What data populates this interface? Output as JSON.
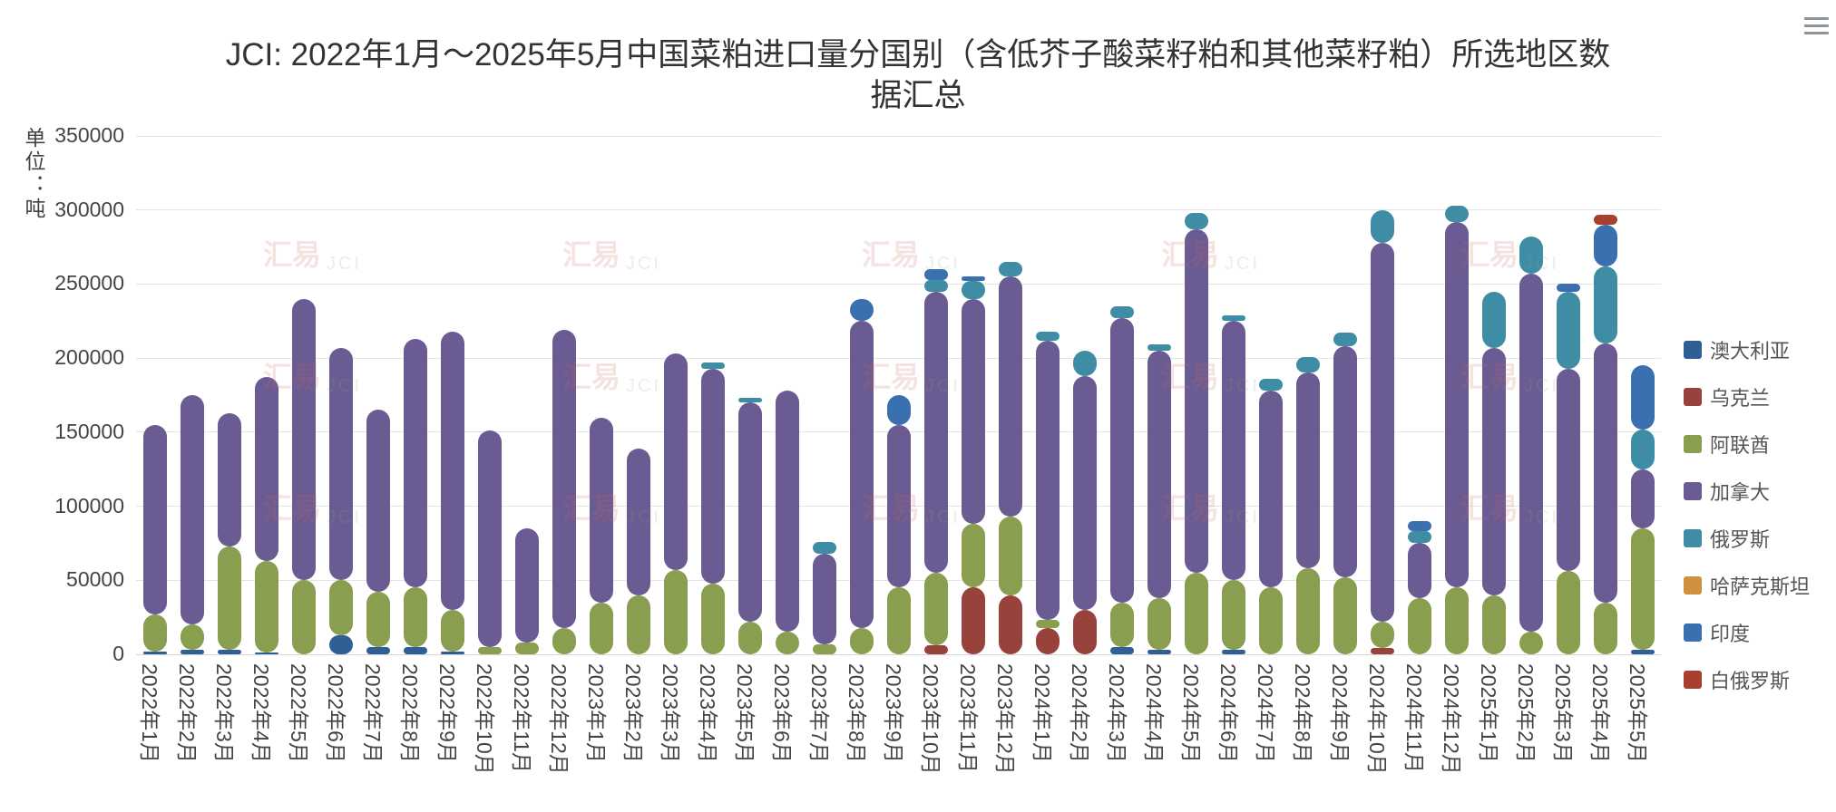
{
  "page": {
    "title": "JCI: 2022年1月～2025年5月中国菜粕进口量分国别（含低芥子酸菜籽粕和其他菜籽粕）所选地区数据汇总",
    "menu_icon": "hamburger-icon",
    "watermark": {
      "brand": "汇易",
      "abbr": "JCI"
    }
  },
  "chart_data": {
    "type": "bar",
    "stacked": true,
    "title": "JCI: 2022年1月～2025年5月中国菜粕进口量分国别（含低芥子酸菜籽粕和其他菜籽粕）所选地区数据汇总",
    "xlabel": "",
    "ylabel": "单位：吨",
    "ylim": [
      0,
      350000
    ],
    "yticks": [
      0,
      50000,
      100000,
      150000,
      200000,
      250000,
      300000,
      350000
    ],
    "grid": true,
    "legend_position": "right",
    "categories": [
      "2022年1月",
      "2022年2月",
      "2022年3月",
      "2022年4月",
      "2022年5月",
      "2022年6月",
      "2022年7月",
      "2022年8月",
      "2022年9月",
      "2022年10月",
      "2022年11月",
      "2022年12月",
      "2023年1月",
      "2023年2月",
      "2023年3月",
      "2023年4月",
      "2023年5月",
      "2023年6月",
      "2023年7月",
      "2023年8月",
      "2023年9月",
      "2023年10月",
      "2023年11月",
      "2023年12月",
      "2024年1月",
      "2024年2月",
      "2024年3月",
      "2024年4月",
      "2024年5月",
      "2024年6月",
      "2024年7月",
      "2024年8月",
      "2024年9月",
      "2024年10月",
      "2024年11月",
      "2024年12月",
      "2025年1月",
      "2025年2月",
      "2025年3月",
      "2025年4月",
      "2025年5月"
    ],
    "series": [
      {
        "name": "澳大利亚",
        "color": "#2f5f94",
        "values": [
          2000,
          3000,
          3000,
          1000,
          0,
          13000,
          5000,
          5000,
          2000,
          0,
          0,
          0,
          0,
          0,
          0,
          0,
          0,
          0,
          0,
          0,
          0,
          0,
          0,
          0,
          0,
          0,
          5000,
          3000,
          0,
          3000,
          0,
          0,
          0,
          0,
          0,
          0,
          0,
          0,
          0,
          0,
          3000
        ]
      },
      {
        "name": "乌克兰",
        "color": "#98423c",
        "values": [
          0,
          0,
          0,
          0,
          0,
          0,
          0,
          0,
          0,
          0,
          0,
          0,
          0,
          0,
          0,
          0,
          0,
          0,
          0,
          0,
          0,
          6000,
          45000,
          40000,
          18000,
          30000,
          0,
          0,
          0,
          0,
          0,
          0,
          0,
          4000,
          0,
          0,
          0,
          0,
          0,
          0,
          0
        ]
      },
      {
        "name": "阿联酋",
        "color": "#8a9e50",
        "values": [
          25000,
          17000,
          70000,
          62000,
          50000,
          37000,
          37000,
          40000,
          28000,
          5000,
          8000,
          18000,
          35000,
          40000,
          57000,
          48000,
          22000,
          15000,
          7000,
          18000,
          45000,
          49000,
          43000,
          53000,
          5000,
          0,
          30000,
          35000,
          55000,
          47000,
          45000,
          58000,
          52000,
          18000,
          38000,
          45000,
          40000,
          15000,
          56000,
          35000,
          82000
        ]
      },
      {
        "name": "加拿大",
        "color": "#6b5b93",
        "values": [
          128000,
          155000,
          90000,
          124000,
          190000,
          157000,
          123000,
          168000,
          188000,
          146000,
          77000,
          201000,
          125000,
          99000,
          146000,
          145000,
          148000,
          163000,
          61000,
          207000,
          110000,
          190000,
          152000,
          162000,
          189000,
          158000,
          192000,
          167000,
          232000,
          175000,
          133000,
          132000,
          156000,
          256000,
          37000,
          247000,
          167000,
          242000,
          137000,
          175000,
          40000
        ]
      },
      {
        "name": "俄罗斯",
        "color": "#3f8da4",
        "values": [
          0,
          0,
          0,
          0,
          0,
          0,
          0,
          0,
          0,
          0,
          0,
          0,
          0,
          0,
          0,
          4000,
          3000,
          0,
          8000,
          0,
          0,
          8000,
          12000,
          10000,
          6000,
          17000,
          8000,
          4000,
          11000,
          4000,
          8000,
          11000,
          9000,
          22000,
          8000,
          11000,
          38000,
          25000,
          52000,
          52000,
          27000
        ]
      },
      {
        "name": "哈萨克斯坦",
        "color": "#d0903f",
        "values": [
          0,
          0,
          0,
          0,
          0,
          0,
          0,
          0,
          0,
          0,
          0,
          0,
          0,
          0,
          0,
          0,
          0,
          0,
          0,
          0,
          0,
          0,
          0,
          0,
          0,
          0,
          0,
          0,
          0,
          0,
          0,
          0,
          0,
          0,
          0,
          0,
          0,
          0,
          0,
          0,
          0
        ]
      },
      {
        "name": "印度",
        "color": "#3a6fb0",
        "values": [
          0,
          0,
          0,
          0,
          0,
          0,
          0,
          0,
          0,
          0,
          0,
          0,
          0,
          0,
          0,
          0,
          0,
          0,
          0,
          15000,
          20000,
          7000,
          3000,
          0,
          0,
          0,
          0,
          0,
          0,
          0,
          0,
          0,
          0,
          0,
          7000,
          0,
          0,
          0,
          5000,
          28000,
          43000
        ]
      },
      {
        "name": "白俄罗斯",
        "color": "#a8402e",
        "values": [
          0,
          0,
          0,
          0,
          0,
          0,
          0,
          0,
          0,
          0,
          0,
          0,
          0,
          0,
          0,
          0,
          0,
          0,
          0,
          0,
          0,
          0,
          0,
          0,
          0,
          0,
          0,
          0,
          0,
          0,
          0,
          0,
          0,
          0,
          0,
          0,
          0,
          0,
          0,
          7000,
          0
        ]
      }
    ]
  }
}
